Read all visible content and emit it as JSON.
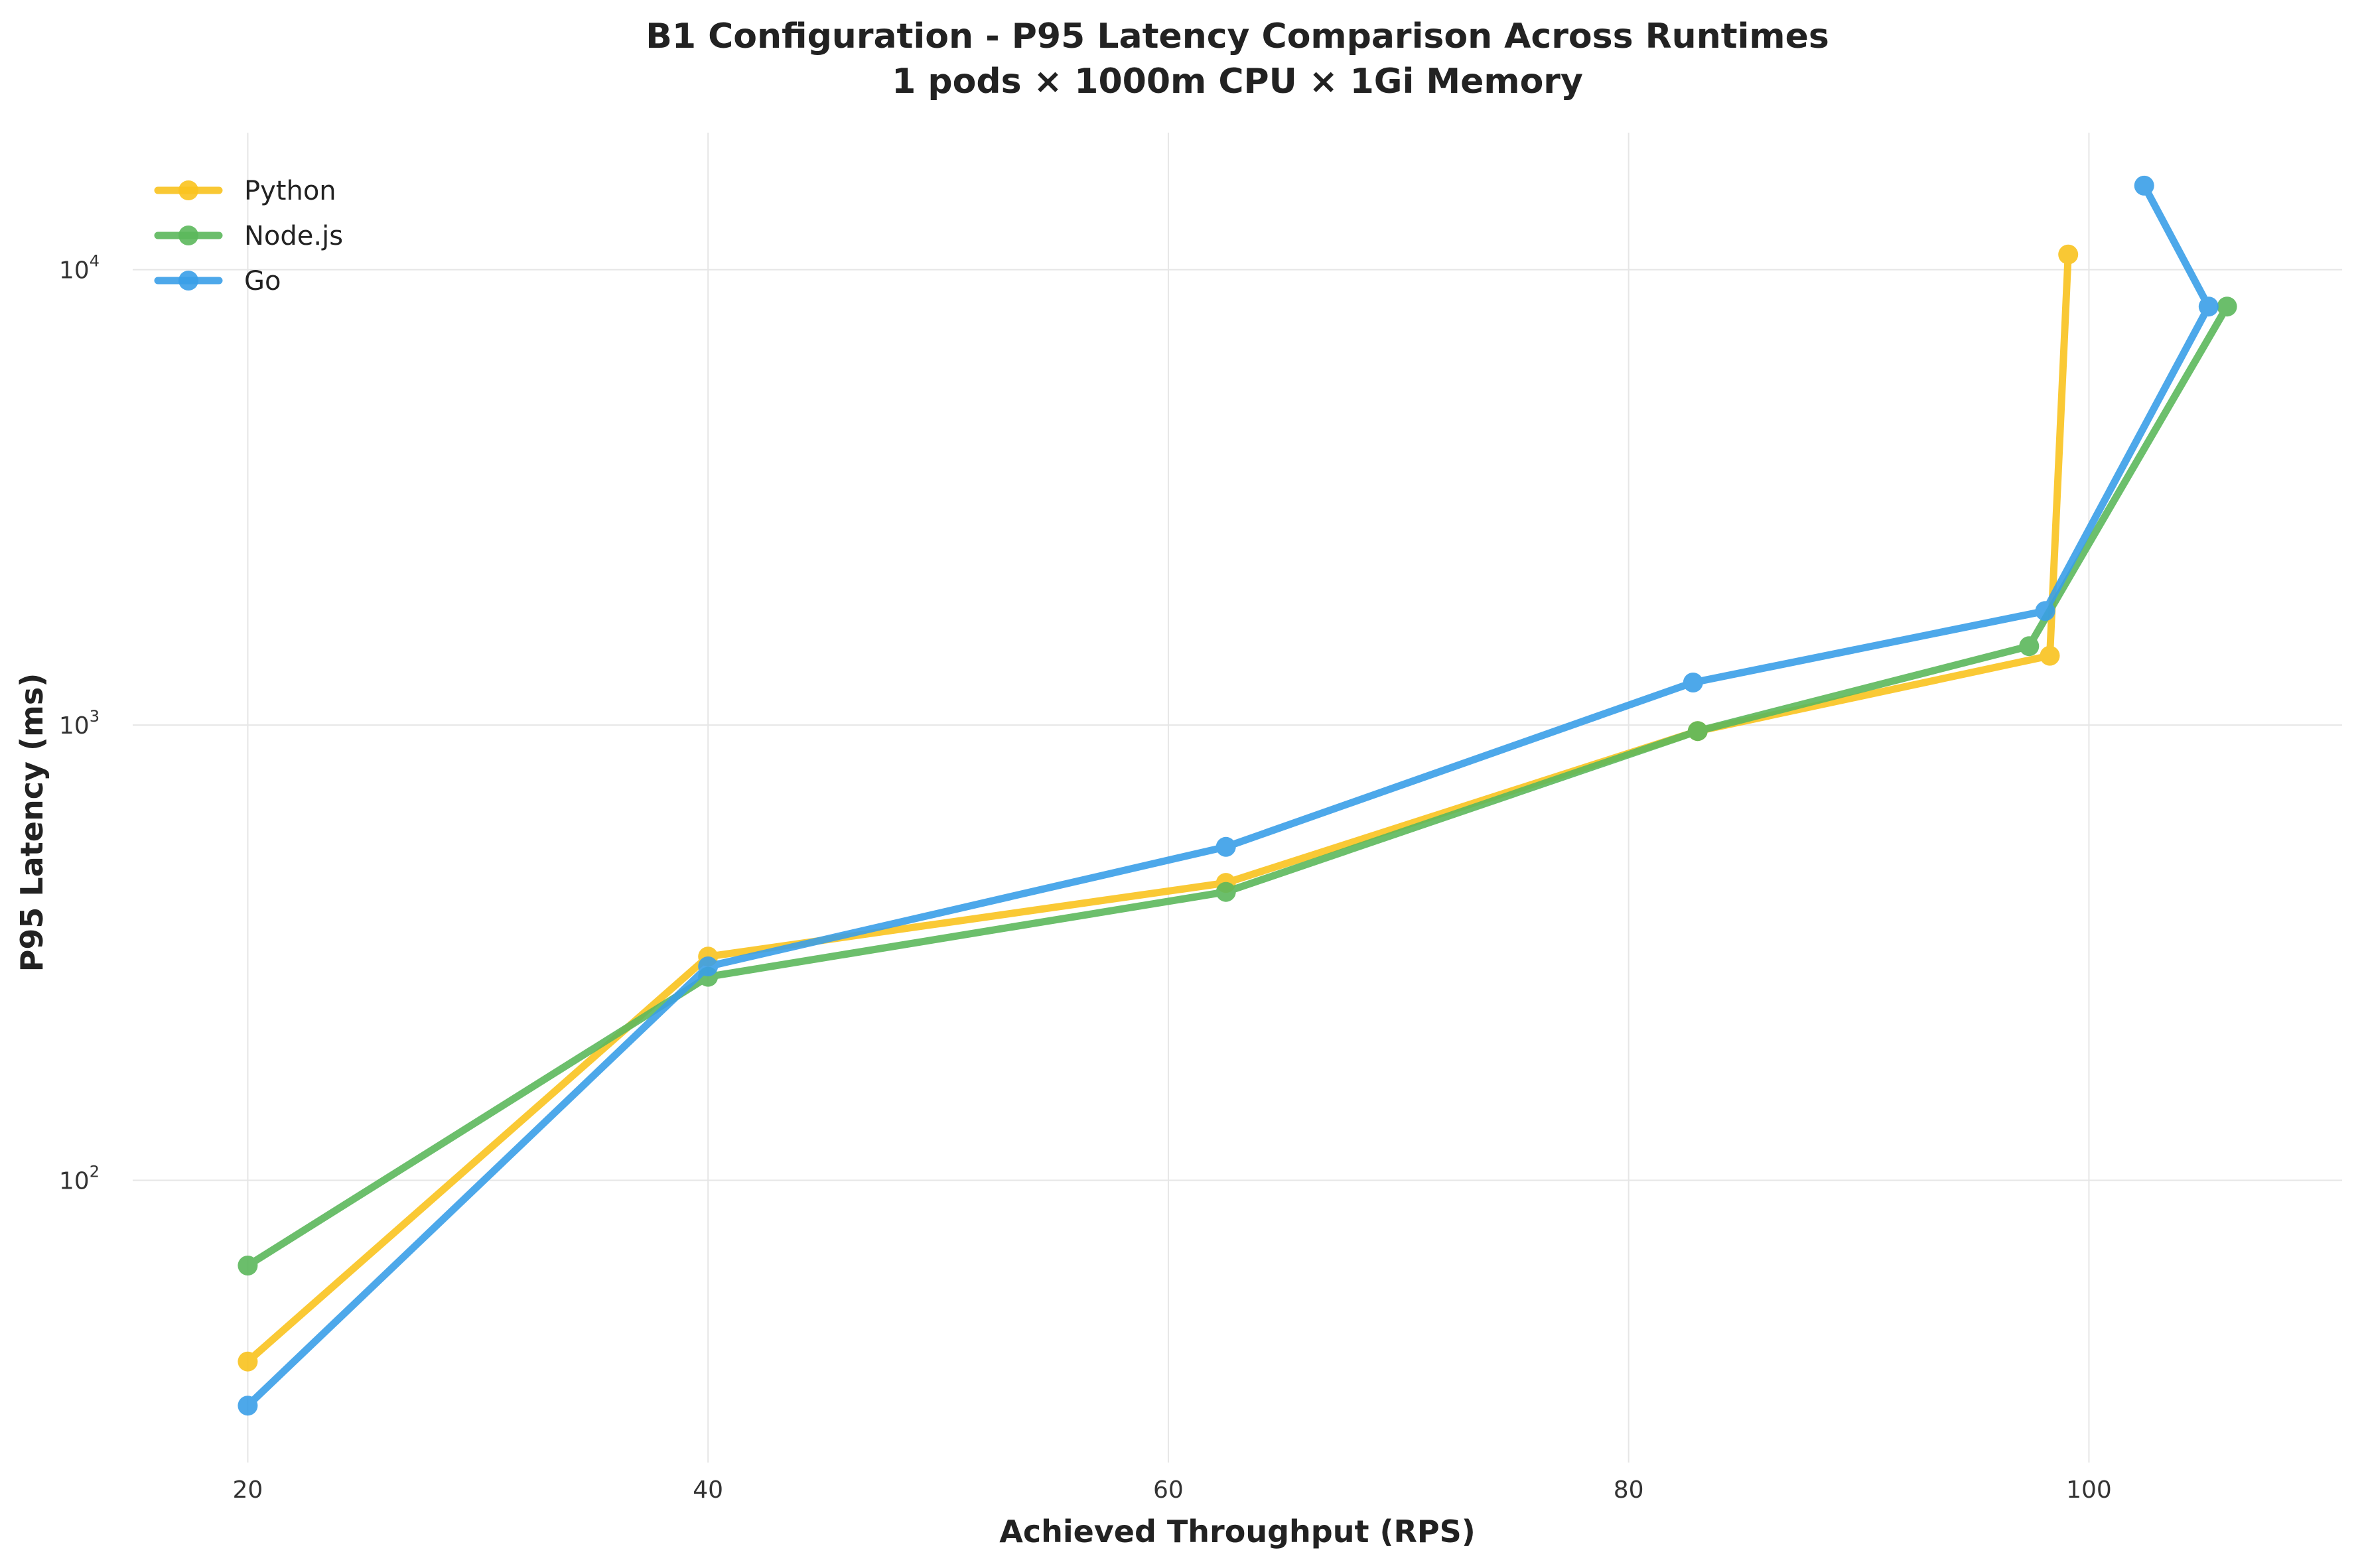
{
  "chart_data": {
    "type": "line",
    "title": "B1 Configuration - P95 Latency Comparison Across Runtimes",
    "subtitle": "1 pods × 1000m CPU × 1Gi Memory",
    "xlabel": "Achieved Throughput (RPS)",
    "ylabel": "P95 Latency (ms)",
    "xlim": [
      15,
      111
    ],
    "ylim": [
      24,
      20000
    ],
    "y_scale": "log",
    "x_ticks": [
      20,
      40,
      60,
      80,
      100
    ],
    "y_ticks": [
      {
        "value": 100,
        "base": "10",
        "exp": "2"
      },
      {
        "value": 1000,
        "base": "10",
        "exp": "3"
      },
      {
        "value": 10000,
        "base": "10",
        "exp": "4"
      }
    ],
    "grid": true,
    "legend_position": "top-left",
    "series": [
      {
        "name": "Python",
        "color": "#F9C31F",
        "points": [
          [
            20,
            40
          ],
          [
            40,
            310
          ],
          [
            62.5,
            450
          ],
          [
            83,
            970
          ],
          [
            98.3,
            1420
          ],
          [
            99.1,
            10800
          ]
        ]
      },
      {
        "name": "Node.js",
        "color": "#5CB85C",
        "points": [
          [
            20,
            65
          ],
          [
            40,
            280
          ],
          [
            62.5,
            430
          ],
          [
            83,
            970
          ],
          [
            97.4,
            1490
          ],
          [
            106,
            8300
          ]
        ]
      },
      {
        "name": "Go",
        "color": "#3A9FE8",
        "points": [
          [
            20,
            32
          ],
          [
            40,
            295
          ],
          [
            62.5,
            540
          ],
          [
            82.8,
            1240
          ],
          [
            98.1,
            1780
          ],
          [
            105.2,
            8300
          ],
          [
            102.4,
            15300
          ]
        ]
      }
    ]
  }
}
